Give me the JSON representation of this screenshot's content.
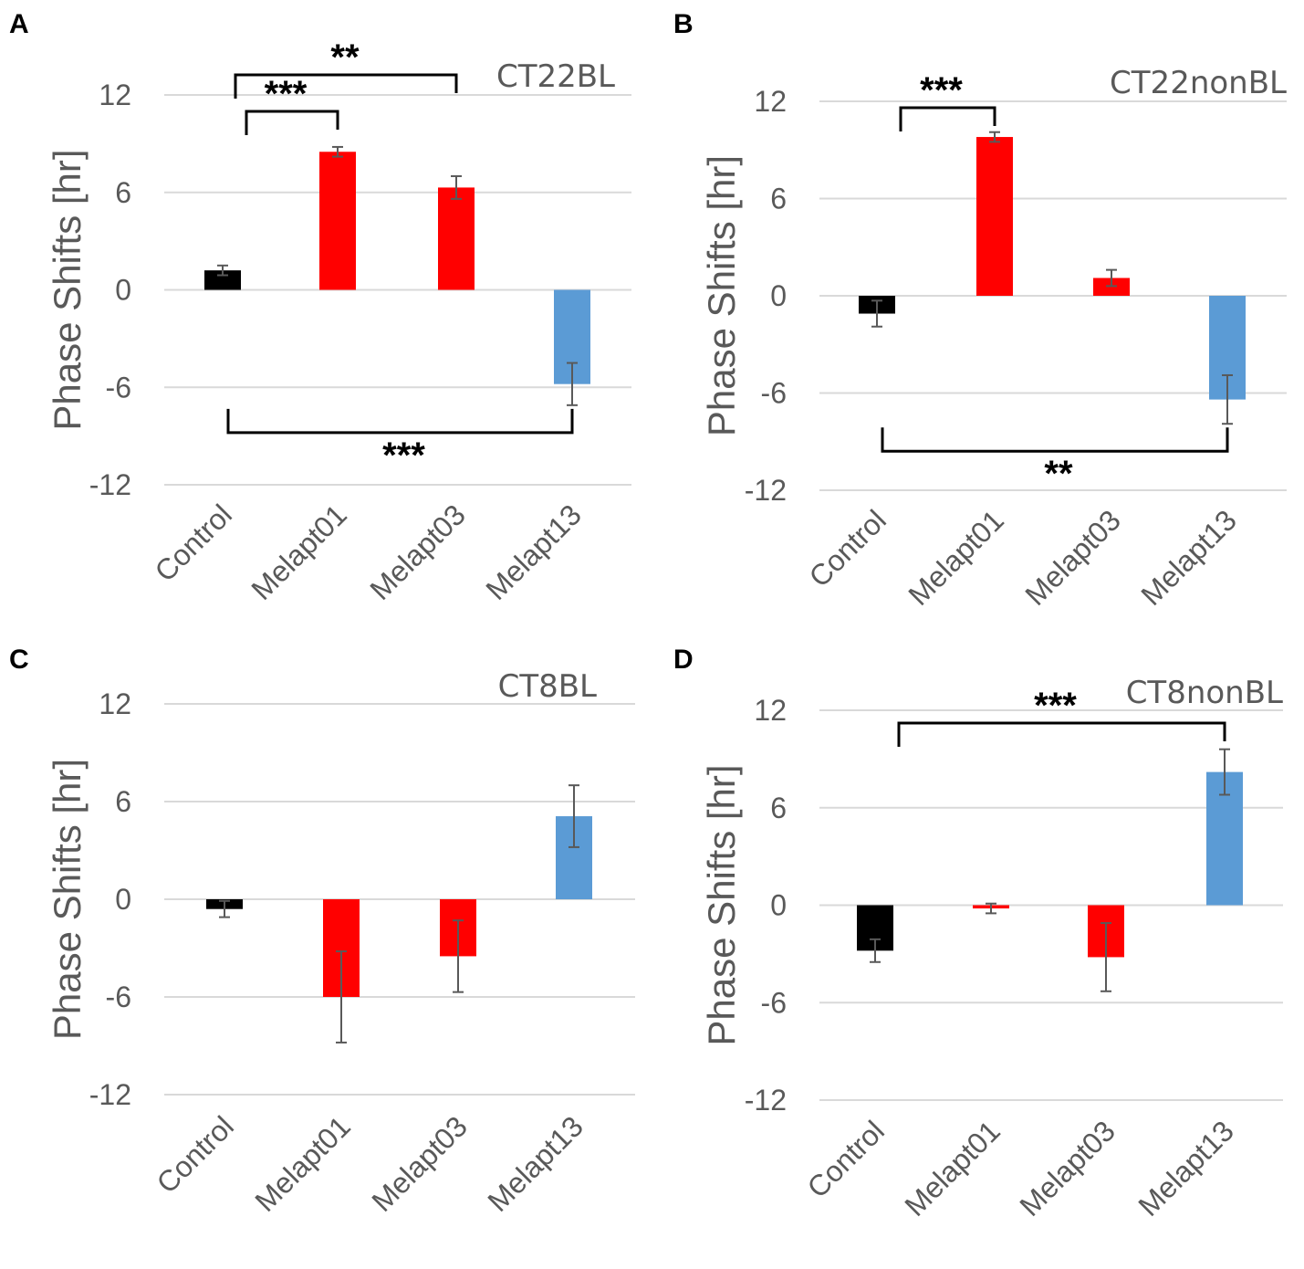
{
  "chart_data": [
    {
      "panel": "A",
      "type": "bar",
      "title": "CT22BL",
      "ylabel": "Phase Shifts [hr]",
      "xlabel": "",
      "ylim": [
        -12,
        12
      ],
      "yticks": [
        "12",
        "6",
        "0",
        "-6",
        "-12"
      ],
      "categories": [
        "Control",
        "Melapt01",
        "Melapt03",
        "Melapt13"
      ],
      "values": [
        1.2,
        8.5,
        6.3,
        -5.8
      ],
      "errors": [
        0.3,
        0.3,
        0.7,
        1.3
      ],
      "colors": [
        "#000000",
        "#ff0000",
        "#ff0000",
        "#5b9bd5"
      ],
      "significance": [
        {
          "from": 0,
          "to": 1,
          "stars": "***",
          "side": "above"
        },
        {
          "from": 0,
          "to": 2,
          "stars": "**",
          "side": "above"
        },
        {
          "from": 0,
          "to": 3,
          "stars": "***",
          "side": "below"
        }
      ]
    },
    {
      "panel": "B",
      "type": "bar",
      "title": "CT22nonBL",
      "ylabel": "Phase Shifts [hr]",
      "xlabel": "",
      "ylim": [
        -12,
        12
      ],
      "yticks": [
        "12",
        "6",
        "0",
        "-6",
        "-12"
      ],
      "categories": [
        "Control",
        "Melapt01",
        "Melapt03",
        "Melapt13"
      ],
      "values": [
        -1.1,
        9.8,
        1.1,
        -6.4
      ],
      "errors": [
        0.8,
        0.3,
        0.5,
        1.5
      ],
      "colors": [
        "#000000",
        "#ff0000",
        "#ff0000",
        "#5b9bd5"
      ],
      "significance": [
        {
          "from": 0,
          "to": 1,
          "stars": "***",
          "side": "above"
        },
        {
          "from": 0,
          "to": 3,
          "stars": "**",
          "side": "below"
        }
      ]
    },
    {
      "panel": "C",
      "type": "bar",
      "title": "CT8BL",
      "ylabel": "Phase Shifts [hr]",
      "xlabel": "",
      "ylim": [
        -12,
        12
      ],
      "yticks": [
        "12",
        "6",
        "0",
        "-6",
        "-12"
      ],
      "categories": [
        "Control",
        "Melapt01",
        "Melapt03",
        "Melapt13"
      ],
      "values": [
        -0.6,
        -6.0,
        -3.5,
        5.1
      ],
      "errors": [
        0.5,
        2.8,
        2.2,
        1.9
      ],
      "colors": [
        "#000000",
        "#ff0000",
        "#ff0000",
        "#5b9bd5"
      ],
      "significance": []
    },
    {
      "panel": "D",
      "type": "bar",
      "title": "CT8nonBL",
      "ylabel": "Phase Shifts [hr]",
      "xlabel": "",
      "ylim": [
        -12,
        12
      ],
      "yticks": [
        "12",
        "6",
        "0",
        "-6",
        "-12"
      ],
      "categories": [
        "Control",
        "Melapt01",
        "Melapt03",
        "Melapt13"
      ],
      "values": [
        -2.8,
        -0.2,
        -3.2,
        8.2
      ],
      "errors": [
        0.7,
        0.3,
        2.1,
        1.4
      ],
      "colors": [
        "#000000",
        "#ff0000",
        "#ff0000",
        "#5b9bd5"
      ],
      "significance": [
        {
          "from": 0,
          "to": 3,
          "stars": "***",
          "side": "above"
        }
      ]
    }
  ]
}
